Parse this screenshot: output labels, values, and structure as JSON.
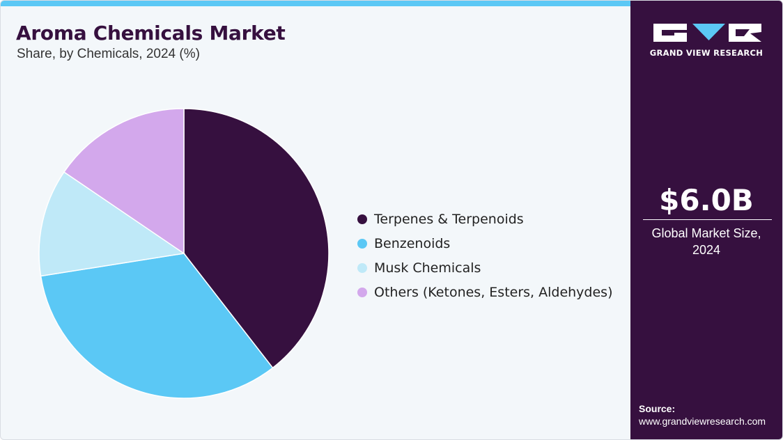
{
  "header": {
    "title": "Aroma Chemicals Market",
    "subtitle": "Share, by Chemicals, 2024 (%)"
  },
  "sidebar": {
    "logo_text": "GRAND VIEW RESEARCH",
    "market_value": "$6.0B",
    "market_label": "Global Market Size, 2024",
    "source_label": "Source:",
    "source_url": "www.grandviewresearch.com"
  },
  "colors": {
    "accent_bar": "#5bc8f5",
    "panel": "#36103f",
    "background": "#f3f7fa"
  },
  "chart_data": {
    "type": "pie",
    "title": "Aroma Chemicals Market",
    "subtitle": "Share, by Chemicals, 2024 (%)",
    "legend_position": "right",
    "categories": [
      "Terpenes & Terpenoids",
      "Benzenoids",
      "Musk Chemicals",
      "Others (Ketones, Esters, Aldehydes)"
    ],
    "values": [
      39.5,
      33,
      12,
      15.5
    ],
    "colors": [
      "#36103f",
      "#5bc8f5",
      "#bfe9f8",
      "#d3a8ec"
    ]
  }
}
